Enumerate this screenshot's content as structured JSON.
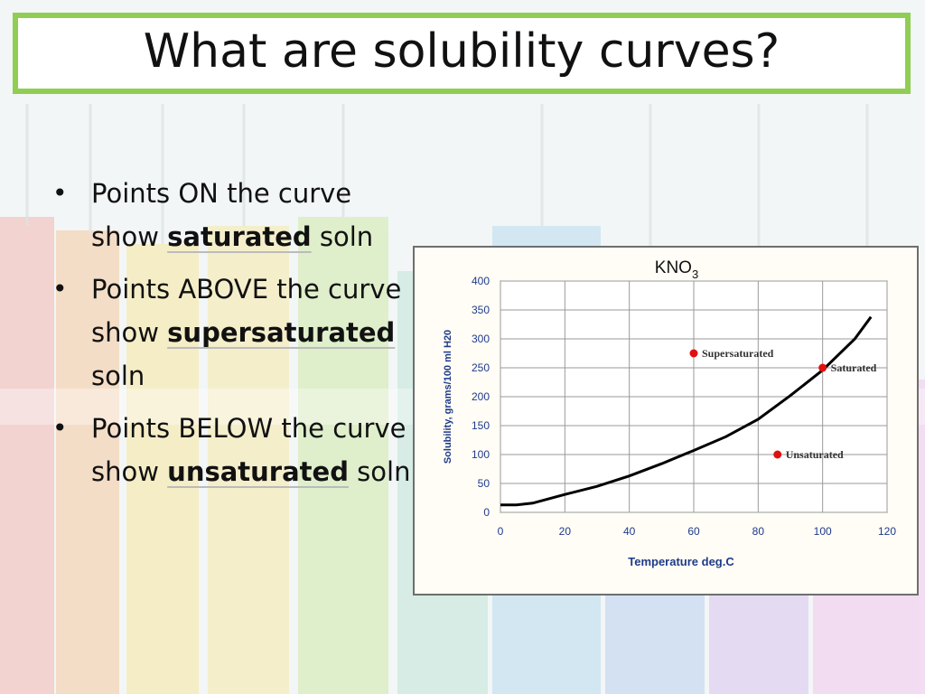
{
  "slide": {
    "title": "What are solubility curves?",
    "bullets": [
      {
        "pre": "Points ON the curve show ",
        "bold": "saturated",
        "post": " soln"
      },
      {
        "pre": "Points ABOVE the curve show ",
        "bold": "supersaturated",
        "post": " soln"
      },
      {
        "pre": "Points BELOW the curve show ",
        "bold": "unsaturated",
        "post": " soln"
      }
    ],
    "bullet_glyph": "•"
  },
  "colors": {
    "title_border": "#8fce52",
    "curve": "#000000",
    "point": "#e01010",
    "axis_text": "#1f3a8a"
  },
  "chart_data": {
    "type": "line",
    "title": "KNO",
    "title_subscript": "3",
    "xlabel": "Temperature  deg.C",
    "ylabel": "Solubility, grams/100 ml H20",
    "xlim": [
      0,
      120
    ],
    "ylim": [
      0,
      400
    ],
    "xticks": [
      0,
      20,
      40,
      60,
      80,
      100,
      120
    ],
    "yticks": [
      0,
      50,
      100,
      150,
      200,
      250,
      300,
      350,
      400
    ],
    "grid": true,
    "series": [
      {
        "x": [
          0,
          5,
          10,
          20,
          30,
          40,
          50,
          60,
          70,
          80,
          90,
          100,
          110,
          115
        ],
        "y": [
          13,
          13,
          16,
          31,
          45,
          63,
          84,
          107,
          131,
          161,
          202,
          246,
          300,
          338
        ]
      }
    ],
    "points": [
      {
        "label": "Supersaturated",
        "x": 60,
        "y": 275
      },
      {
        "label": "Saturated",
        "x": 100,
        "y": 250
      },
      {
        "label": "Unsaturated",
        "x": 86,
        "y": 100
      }
    ]
  }
}
